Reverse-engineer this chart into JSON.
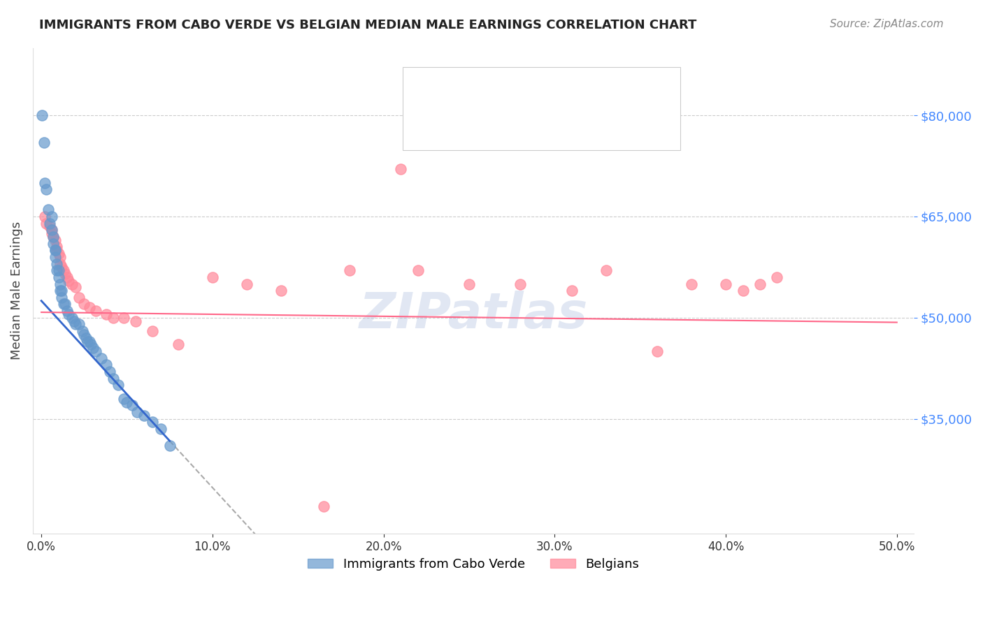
{
  "title": "IMMIGRANTS FROM CABO VERDE VS BELGIAN MEDIAN MALE EARNINGS CORRELATION CHART",
  "source": "Source: ZipAtlas.com",
  "ylabel": "Median Male Earnings",
  "ytick_labels": [
    "$35,000",
    "$50,000",
    "$65,000",
    "$80,000"
  ],
  "ytick_values": [
    35000,
    50000,
    65000,
    80000
  ],
  "xtick_labels": [
    "0.0%",
    "10.0%",
    "20.0%",
    "30.0%",
    "40.0%",
    "50.0%"
  ],
  "xtick_values": [
    0.0,
    0.1,
    0.2,
    0.3,
    0.4,
    0.5
  ],
  "legend_label1": "Immigrants from Cabo Verde",
  "legend_label2": "Belgians",
  "series1_color": "#6699CC",
  "series2_color": "#FF8899",
  "trend1_color": "#3366CC",
  "trend2_color": "#FF6688",
  "background_color": "#ffffff",
  "watermark": "ZIPatlas",
  "watermark_color": "#aabbdd",
  "grid_color": "#cccccc",
  "ylabel_color": "#444444",
  "ytick_label_color": "#4488FF",
  "title_color": "#222222",
  "source_color": "#888888",
  "blue_x": [
    0.0005,
    0.0015,
    0.002,
    0.003,
    0.004,
    0.005,
    0.006,
    0.006,
    0.007,
    0.007,
    0.008,
    0.008,
    0.008,
    0.009,
    0.009,
    0.01,
    0.01,
    0.011,
    0.011,
    0.012,
    0.012,
    0.013,
    0.014,
    0.015,
    0.016,
    0.018,
    0.019,
    0.02,
    0.022,
    0.024,
    0.025,
    0.026,
    0.027,
    0.028,
    0.029,
    0.03,
    0.032,
    0.035,
    0.038,
    0.04,
    0.042,
    0.045,
    0.048,
    0.05,
    0.053,
    0.056,
    0.06,
    0.065,
    0.07,
    0.075
  ],
  "blue_y": [
    80000,
    76000,
    70000,
    69000,
    66000,
    64000,
    65000,
    63000,
    62000,
    61000,
    60000,
    60000,
    59000,
    58000,
    57000,
    57000,
    56000,
    55000,
    54000,
    54000,
    53000,
    52000,
    52000,
    51000,
    50500,
    50000,
    49500,
    49000,
    49000,
    48000,
    47500,
    47000,
    46500,
    46500,
    46000,
    45500,
    45000,
    44000,
    43000,
    42000,
    41000,
    40000,
    38000,
    37500,
    37000,
    36000,
    35500,
    34500,
    33500,
    31000
  ],
  "pink_x": [
    0.002,
    0.003,
    0.005,
    0.006,
    0.006,
    0.007,
    0.008,
    0.009,
    0.009,
    0.01,
    0.011,
    0.011,
    0.012,
    0.013,
    0.014,
    0.015,
    0.016,
    0.018,
    0.02,
    0.022,
    0.025,
    0.028,
    0.032,
    0.038,
    0.042,
    0.048,
    0.055,
    0.065,
    0.08,
    0.1,
    0.12,
    0.14,
    0.165,
    0.18,
    0.21,
    0.22,
    0.25,
    0.28,
    0.31,
    0.33,
    0.36,
    0.38,
    0.4,
    0.41,
    0.42,
    0.43
  ],
  "pink_y": [
    65000,
    64000,
    63500,
    63000,
    62500,
    62000,
    61500,
    60500,
    60000,
    59500,
    59000,
    58000,
    57500,
    57000,
    56500,
    56000,
    55500,
    55000,
    54500,
    53000,
    52000,
    51500,
    51000,
    50500,
    50000,
    50000,
    49500,
    48000,
    46000,
    56000,
    55000,
    54000,
    22000,
    57000,
    72000,
    57000,
    55000,
    55000,
    54000,
    57000,
    45000,
    55000,
    55000,
    54000,
    55000,
    56000
  ],
  "b_slope": -276923,
  "b_intercept": 52500,
  "p_slope": -3000,
  "p_intercept": 50800
}
